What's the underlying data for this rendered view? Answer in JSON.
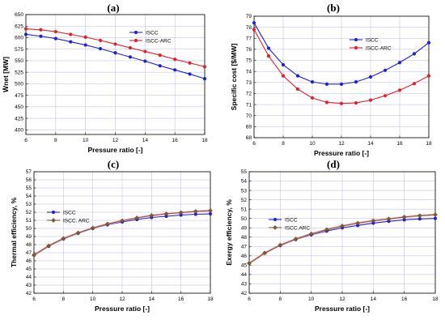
{
  "chart_data": [
    {
      "type": "line",
      "panel_label": "(a)",
      "xlabel": "Pressure ratio [-]",
      "ylabel": "Ẇnet [MW]",
      "xlim": [
        6,
        18
      ],
      "ylim": [
        390,
        650
      ],
      "xticks": [
        6,
        8,
        10,
        12,
        14,
        16,
        18
      ],
      "yticks": [
        400,
        425,
        450,
        475,
        500,
        525,
        550,
        575,
        600,
        625,
        650
      ],
      "grid": true,
      "legend_position": "top-right",
      "x": [
        6,
        7,
        8,
        9,
        10,
        11,
        12,
        13,
        14,
        15,
        16,
        17,
        18
      ],
      "series": [
        {
          "name": "ISCC",
          "color": "#1f1fd6",
          "marker": "circle",
          "values": [
            607,
            603,
            598,
            591,
            584,
            576,
            567,
            558,
            549,
            539,
            530,
            521,
            511
          ]
        },
        {
          "name": "ISCC-ARC",
          "color": "#e0202a",
          "marker": "circle",
          "values": [
            619,
            617,
            613,
            607,
            601,
            594,
            586,
            578,
            570,
            562,
            553,
            545,
            537
          ]
        }
      ]
    },
    {
      "type": "line",
      "panel_label": "(b)",
      "xlabel": "Pressure ratio [-]",
      "ylabel": "Specific cost [$/MW]",
      "xlim": [
        6,
        18
      ],
      "ylim": [
        68,
        79
      ],
      "xticks": [
        6,
        8,
        10,
        12,
        14,
        16,
        18
      ],
      "yticks": [
        68,
        69,
        70,
        71,
        72,
        73,
        74,
        75,
        76,
        77,
        78,
        79
      ],
      "grid": true,
      "legend_position": "top-right",
      "x": [
        6,
        7,
        8,
        9,
        10,
        11,
        12,
        13,
        14,
        15,
        16,
        17,
        18
      ],
      "series": [
        {
          "name": "ISCC",
          "color": "#1f1fd6",
          "marker": "circle",
          "values": [
            78.4,
            76.1,
            74.6,
            73.6,
            73.05,
            72.85,
            72.85,
            73.05,
            73.5,
            74.1,
            74.8,
            75.6,
            76.6
          ]
        },
        {
          "name": "ISCC-ARC",
          "color": "#e0202a",
          "marker": "circle",
          "values": [
            77.8,
            75.4,
            73.6,
            72.4,
            71.6,
            71.2,
            71.1,
            71.15,
            71.4,
            71.8,
            72.3,
            72.9,
            73.6
          ]
        }
      ]
    },
    {
      "type": "line",
      "panel_label": "(c)",
      "xlabel": "Pressure ratio [-]",
      "ylabel": "Thermal efficiency, %",
      "xlim": [
        6,
        18
      ],
      "ylim": [
        42,
        57
      ],
      "xticks": [
        6,
        8,
        10,
        12,
        14,
        16,
        18
      ],
      "yticks": [
        42,
        43,
        44,
        45,
        46,
        47,
        48,
        49,
        50,
        51,
        52,
        53,
        54,
        55,
        56,
        57
      ],
      "grid": true,
      "legend_position": "top-left",
      "x": [
        6,
        7,
        8,
        9,
        10,
        11,
        12,
        13,
        14,
        15,
        16,
        17,
        18
      ],
      "series": [
        {
          "name": "ISCC",
          "color": "#1f1fd6",
          "marker": "circle",
          "values": [
            46.7,
            47.8,
            48.7,
            49.4,
            50.0,
            50.45,
            50.8,
            51.1,
            51.35,
            51.5,
            51.65,
            51.75,
            51.8
          ]
        },
        {
          "name": "ISCC. ARC",
          "color": "#8b5a2b",
          "marker": "diamond",
          "values": [
            46.7,
            47.85,
            48.75,
            49.45,
            50.05,
            50.55,
            50.95,
            51.3,
            51.6,
            51.8,
            51.95,
            52.1,
            52.2
          ]
        }
      ]
    },
    {
      "type": "line",
      "panel_label": "(d)",
      "xlabel": "Pressure ratio [-]",
      "ylabel": "Exergy efficiency, %",
      "xlim": [
        6,
        18
      ],
      "ylim": [
        42,
        55
      ],
      "xticks": [
        6,
        8,
        10,
        12,
        14,
        16,
        18
      ],
      "yticks": [
        42,
        43,
        44,
        45,
        46,
        47,
        48,
        49,
        50,
        51,
        52,
        53,
        54,
        55
      ],
      "grid": true,
      "legend_position": "top-left",
      "x": [
        6,
        7,
        8,
        9,
        10,
        11,
        12,
        13,
        14,
        15,
        16,
        17,
        18
      ],
      "series": [
        {
          "name": "ISCC",
          "color": "#1f1fd6",
          "marker": "circle",
          "values": [
            45.2,
            46.3,
            47.1,
            47.75,
            48.25,
            48.65,
            49.0,
            49.25,
            49.5,
            49.7,
            49.85,
            49.95,
            50.0
          ]
        },
        {
          "name": "ISCC.ARC",
          "color": "#8b5a2b",
          "marker": "diamond",
          "values": [
            45.2,
            46.3,
            47.15,
            47.8,
            48.35,
            48.8,
            49.2,
            49.5,
            49.75,
            49.95,
            50.15,
            50.3,
            50.4
          ]
        }
      ]
    }
  ]
}
